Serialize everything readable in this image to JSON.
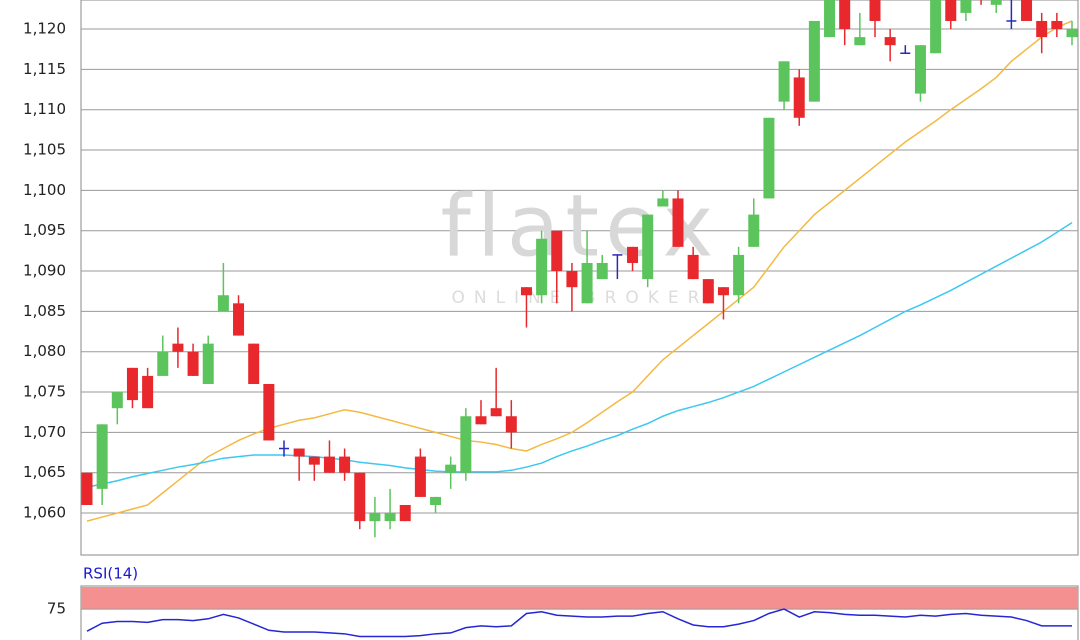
{
  "chart_data": [
    {
      "type": "candlestick",
      "watermark": "flatex",
      "watermark_sub": "ONLINE BROKER",
      "up_color": "#5cc45c",
      "down_color": "#e8282c",
      "doji_color": "#2a2ab8",
      "open": [
        1065,
        1063,
        1073,
        1078,
        1077,
        1077,
        1081,
        1080,
        1076,
        1085,
        1086,
        1081,
        1076,
        1068,
        1068,
        1067,
        1067,
        1067,
        1065,
        1059,
        1059,
        1061,
        1067,
        1061,
        1065,
        1065,
        1072,
        1073,
        1072,
        1088,
        1087,
        1095,
        1090,
        1086,
        1089,
        1092,
        1093,
        1089,
        1098,
        1099,
        1092,
        1089,
        1088,
        1087,
        1093,
        1099,
        1111,
        1114,
        1111,
        1119,
        1124,
        1118,
        1124,
        1119,
        1117,
        1112,
        1117,
        1124,
        1122,
        1126,
        1123,
        1121,
        1124,
        1121,
        1121,
        1119
      ],
      "high": [
        1065,
        1071,
        1075,
        1078,
        1078,
        1082,
        1083,
        1081,
        1082,
        1091,
        1087,
        1081,
        1076,
        1069,
        1068,
        1067,
        1069,
        1068,
        1065,
        1062,
        1063,
        1061,
        1068,
        1062,
        1067,
        1073,
        1074,
        1078,
        1074,
        1088,
        1095,
        1095,
        1091,
        1095,
        1092,
        1092,
        1093,
        1097,
        1100,
        1100,
        1093,
        1089,
        1088,
        1093,
        1099,
        1109,
        1116,
        1115,
        1121,
        1125,
        1124,
        1122,
        1125,
        1120,
        1118,
        1118,
        1125,
        1125,
        1125,
        1127,
        1126,
        1125,
        1125,
        1122,
        1122,
        1121
      ],
      "low": [
        1061,
        1061,
        1071,
        1073,
        1073,
        1077,
        1078,
        1077,
        1076,
        1085,
        1082,
        1076,
        1069,
        1067,
        1064,
        1064,
        1065,
        1064,
        1058,
        1057,
        1058,
        1059,
        1062,
        1060,
        1063,
        1064,
        1071,
        1072,
        1068,
        1083,
        1086,
        1086,
        1085,
        1086,
        1089,
        1089,
        1090,
        1088,
        1098,
        1093,
        1089,
        1086,
        1084,
        1086,
        1093,
        1099,
        1110,
        1108,
        1111,
        1119,
        1118,
        1118,
        1119,
        1116,
        1117,
        1111,
        1117,
        1120,
        1121,
        1123,
        1122,
        1120,
        1121,
        1117,
        1119,
        1118
      ],
      "close": [
        1061,
        1071,
        1075,
        1074,
        1073,
        1080,
        1080,
        1077,
        1081,
        1087,
        1082,
        1076,
        1069,
        1068,
        1067,
        1066,
        1065,
        1065,
        1059,
        1060,
        1060,
        1059,
        1062,
        1062,
        1066,
        1072,
        1071,
        1072,
        1070,
        1087,
        1094,
        1090,
        1088,
        1091,
        1091,
        1092,
        1091,
        1097,
        1099,
        1093,
        1089,
        1086,
        1087,
        1092,
        1097,
        1109,
        1116,
        1109,
        1121,
        1124,
        1120,
        1119,
        1121,
        1118,
        1117,
        1118,
        1124,
        1121,
        1124,
        1124,
        1125,
        1121,
        1121,
        1119,
        1120,
        1120
      ],
      "overlays": [
        {
          "color": "#f4b942",
          "values": [
            1059,
            1059.5,
            1060,
            1060.5,
            1061,
            1062.5,
            1064,
            1065.5,
            1067,
            1068,
            1069,
            1069.8,
            1070.5,
            1071,
            1071.5,
            1071.8,
            1072.3,
            1072.8,
            1072.5,
            1072,
            1071.5,
            1071,
            1070.5,
            1070,
            1069.5,
            1069,
            1068.8,
            1068.5,
            1068,
            1067.7,
            1068.5,
            1069.2,
            1070,
            1071.2,
            1072.5,
            1073.8,
            1075,
            1077,
            1079,
            1080.5,
            1082,
            1083.5,
            1085,
            1086.5,
            1088,
            1090.5,
            1093,
            1095,
            1097,
            1098.5,
            1100,
            1101.5,
            1103,
            1104.5,
            1106,
            1107.3,
            1108.6,
            1110,
            1111.3,
            1112.6,
            1114,
            1116,
            1117.5,
            1119,
            1120.2,
            1121
          ]
        },
        {
          "color": "#3cc8f0",
          "values": [
            1063.2,
            1063.6,
            1064,
            1064.5,
            1064.9,
            1065.3,
            1065.7,
            1066,
            1066.4,
            1066.8,
            1067,
            1067.2,
            1067.2,
            1067.2,
            1067.1,
            1067,
            1066.8,
            1066.6,
            1066.3,
            1066.1,
            1065.9,
            1065.6,
            1065.4,
            1065.2,
            1065.1,
            1065.1,
            1065.1,
            1065.1,
            1065.3,
            1065.7,
            1066.2,
            1067,
            1067.7,
            1068.3,
            1069,
            1069.6,
            1070.4,
            1071.1,
            1072,
            1072.7,
            1073.2,
            1073.7,
            1074.3,
            1075,
            1075.7,
            1076.6,
            1077.5,
            1078.4,
            1079.3,
            1080.2,
            1081.1,
            1082,
            1083,
            1084,
            1085,
            1085.8,
            1086.7,
            1087.6,
            1088.6,
            1089.6,
            1090.6,
            1091.6,
            1092.6,
            1093.6,
            1094.8,
            1096
          ]
        }
      ],
      "ylim": [
        1054.8,
        1123.6
      ],
      "yticks": [
        {
          "value": 1060,
          "label": "1,060"
        },
        {
          "value": 1065,
          "label": "1,065"
        },
        {
          "value": 1070,
          "label": "1,070"
        },
        {
          "value": 1075,
          "label": "1,075"
        },
        {
          "value": 1080,
          "label": "1,080"
        },
        {
          "value": 1085,
          "label": "1,085"
        },
        {
          "value": 1090,
          "label": "1,090"
        },
        {
          "value": 1095,
          "label": "1,095"
        },
        {
          "value": 1100,
          "label": "1,100"
        },
        {
          "value": 1105,
          "label": "1,105"
        },
        {
          "value": 1110,
          "label": "1,110"
        },
        {
          "value": 1115,
          "label": "1,115"
        },
        {
          "value": 1120,
          "label": "1,120"
        }
      ],
      "grid": true
    },
    {
      "type": "line",
      "title": "RSI(14)",
      "color": "#2626d6",
      "band": [
        75,
        100
      ],
      "band_color": "#f59090",
      "values": [
        50,
        59,
        61,
        61,
        60,
        63,
        63,
        62,
        64,
        69,
        65,
        58,
        51,
        49,
        49,
        49,
        48,
        47,
        44,
        44,
        44,
        44,
        45,
        47,
        48,
        54,
        56,
        55,
        56,
        70,
        72,
        68,
        67,
        66,
        66,
        67,
        67,
        70,
        72,
        64,
        57,
        55,
        55,
        58,
        62,
        70,
        75,
        66,
        72,
        71,
        69,
        68,
        68,
        67,
        66,
        68,
        67,
        69,
        70,
        68,
        67,
        66,
        62,
        56,
        56,
        56
      ],
      "ylim": [
        40,
        100
      ],
      "yticks": [
        75
      ],
      "grid": true
    }
  ]
}
